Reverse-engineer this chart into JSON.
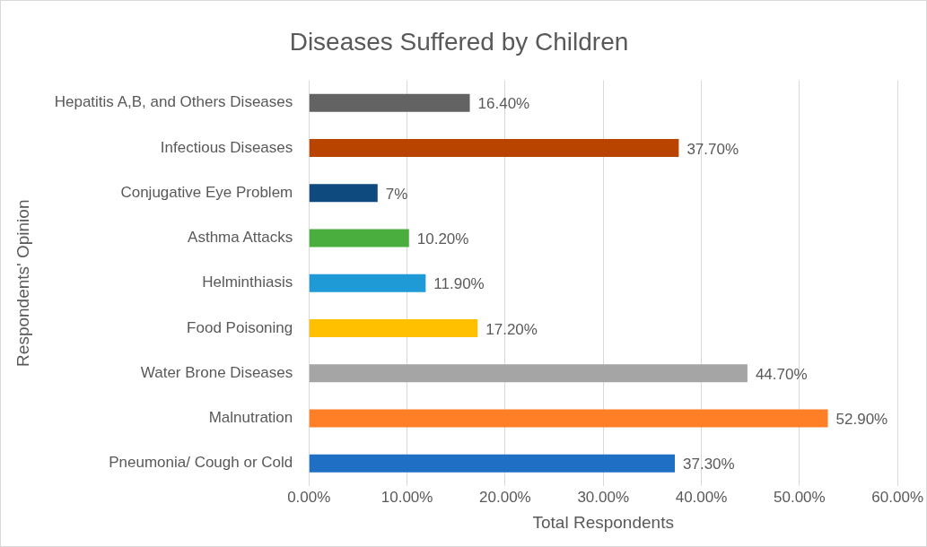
{
  "chart_data": {
    "type": "bar",
    "orientation": "horizontal",
    "title": "Diseases Suffered by Children",
    "xlabel": "Total Respondents",
    "ylabel": "Respondents' Opinion",
    "categories": [
      "Hepatitis A,B, and Others Diseases",
      "Infectious Diseases",
      "Conjugative Eye Problem",
      "Asthma Attacks",
      "Helminthiasis",
      "Food Poisoning",
      "Water Brone Diseases",
      "Malnutration",
      "Pneumonia/ Cough or Cold"
    ],
    "values": [
      16.4,
      37.7,
      7,
      10.2,
      11.9,
      17.2,
      44.7,
      52.9,
      37.3
    ],
    "colors": [
      "#636363",
      "#b84400",
      "#0e4a7e",
      "#4aae3f",
      "#1f9ad6",
      "#ffc000",
      "#a5a5a5",
      "#ff7f27",
      "#1f6fc5"
    ],
    "value_labels": [
      "16.40%",
      "37.70%",
      "7%",
      "10.20%",
      "11.90%",
      "17.20%",
      "44.70%",
      "52.90%",
      "37.30%"
    ],
    "xlim": [
      0,
      60
    ],
    "xticks": [
      {
        "value": 0,
        "label": "0.00%"
      },
      {
        "value": 10,
        "label": "10.00%"
      },
      {
        "value": 20,
        "label": "20.00%"
      },
      {
        "value": 30,
        "label": "30.00%"
      },
      {
        "value": 40,
        "label": "40.00%"
      },
      {
        "value": 50,
        "label": "50.00%"
      },
      {
        "value": 60,
        "label": "60.00%"
      }
    ],
    "grid": "x"
  }
}
